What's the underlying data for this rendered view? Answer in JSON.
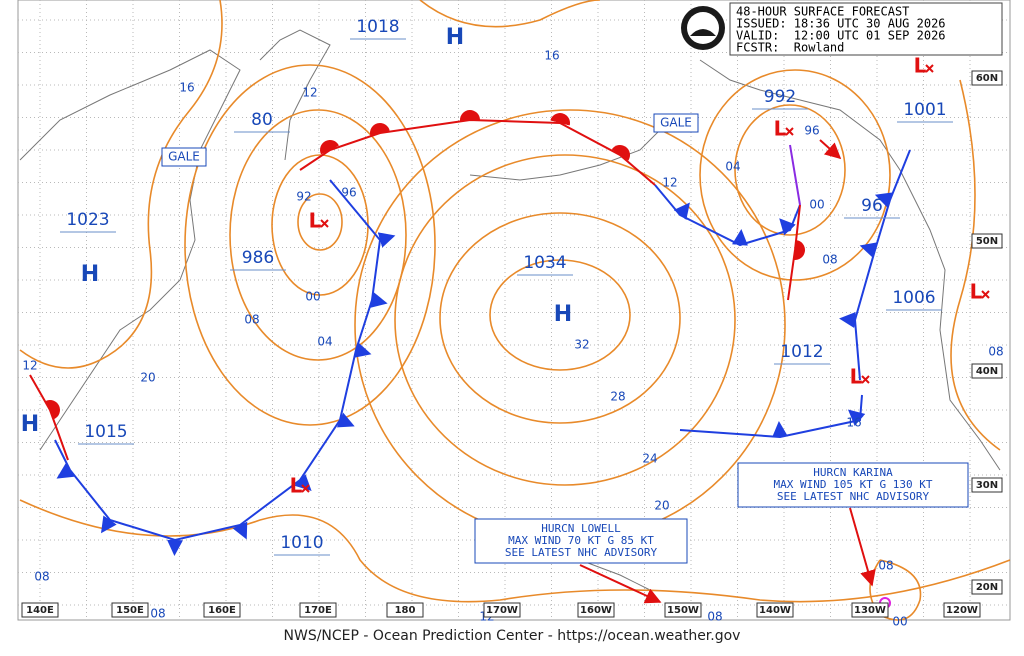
{
  "header": {
    "title": "48-HOUR SURFACE FORECAST",
    "issued": "ISSUED: 18:36 UTC 30 AUG 2026",
    "valid": "VALID:  12:00 UTC 01 SEP 2026",
    "forecaster": "FCSTR:  Rowland"
  },
  "footer": "NWS/NCEP - Ocean Prediction Center - https://ocean.weather.gov",
  "pressure_labels": [
    "1018",
    "80",
    "986",
    "1023",
    "1015",
    "1010",
    "1034",
    "992",
    "1001",
    "96",
    "1006",
    "1012"
  ],
  "high_markers": [
    "H",
    "H",
    "H",
    "H"
  ],
  "low_markers": [
    "L",
    "L",
    "L",
    "L",
    "L",
    "L"
  ],
  "contour_labels": [
    "16",
    "12",
    "16",
    "12",
    "04",
    "00",
    "08",
    "92",
    "96",
    "00",
    "04",
    "08",
    "20",
    "12",
    "32",
    "28",
    "24",
    "20",
    "16",
    "08",
    "08",
    "08",
    "12",
    "08",
    "08",
    "00",
    "96"
  ],
  "gale_labels": [
    "GALE",
    "GALE"
  ],
  "hurricanes": [
    {
      "name": "HURCN LOWELL",
      "wind": "MAX WIND 70 KT G 85 KT",
      "note": "SEE LATEST NHC ADVISORY"
    },
    {
      "name": "HURCN KARINA",
      "wind": "MAX WIND 105 KT G 130 KT",
      "note": "SEE LATEST NHC ADVISORY"
    }
  ],
  "longitude_labels": [
    "140E",
    "150E",
    "160E",
    "170E",
    "180",
    "170W",
    "160W",
    "150W",
    "140W",
    "130W",
    "120W"
  ],
  "latitude_labels": [
    "60N",
    "50N",
    "40N",
    "30N",
    "20N"
  ]
}
